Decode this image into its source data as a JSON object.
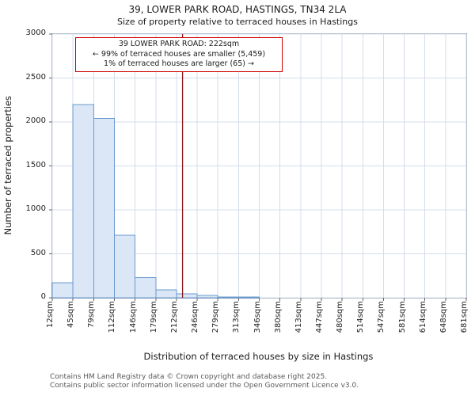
{
  "annotation": {
    "line1": "39 LOWER PARK ROAD: 222sqm",
    "line2": "← 99% of terraced houses are smaller (5,459)",
    "line3": "1% of terraced houses are larger (65) →"
  },
  "footer": {
    "line1": "Contains HM Land Registry data © Crown copyright and database right 2025.",
    "line2": "Contains public sector information licensed under the Open Government Licence v3.0."
  },
  "chart_data": {
    "type": "bar",
    "title": "39, LOWER PARK ROAD, HASTINGS, TN34 2LA",
    "subtitle": "Size of property relative to terraced houses in Hastings",
    "xlabel": "Distribution of terraced houses by size in Hastings",
    "ylabel": "Number of terraced properties",
    "ylim": [
      0,
      3000
    ],
    "yticks": [
      0,
      500,
      1000,
      1500,
      2000,
      2500,
      3000
    ],
    "grid": true,
    "legend": "none",
    "x_tick_labels": [
      "12sqm",
      "45sqm",
      "79sqm",
      "112sqm",
      "146sqm",
      "179sqm",
      "212sqm",
      "246sqm",
      "279sqm",
      "313sqm",
      "346sqm",
      "380sqm",
      "413sqm",
      "447sqm",
      "480sqm",
      "514sqm",
      "547sqm",
      "581sqm",
      "614sqm",
      "648sqm",
      "681sqm"
    ],
    "bin_edges_sqm": [
      12,
      45,
      79,
      112,
      146,
      179,
      212,
      246,
      279,
      313,
      346,
      380,
      413,
      447,
      480,
      514,
      547,
      581,
      614,
      648,
      681
    ],
    "values": [
      170,
      2200,
      2040,
      710,
      230,
      90,
      45,
      25,
      10,
      8,
      0,
      0,
      0,
      0,
      0,
      0,
      0,
      0,
      0,
      0
    ],
    "marker": {
      "sqm": 222,
      "label": "222sqm"
    },
    "colors": {
      "bar_fill": "#dbe7f6",
      "bar_stroke": "#6899ce",
      "grid": "#d4ddeb",
      "marker_line": "#8b1a1a",
      "annotation_border": "#cc0000",
      "spine": "#9aa3b0",
      "tick": "#666666"
    }
  }
}
